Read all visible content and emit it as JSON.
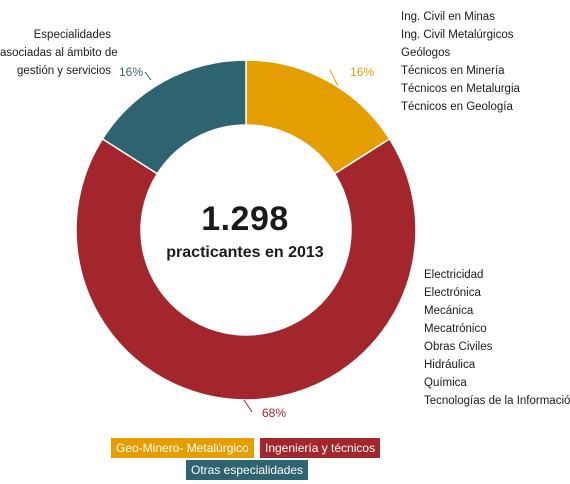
{
  "chart_data": {
    "type": "pie",
    "donut": true,
    "center": {
      "total": "1.298",
      "caption": "practicantes en 2013"
    },
    "slices": [
      {
        "name": "Geo-Minero- Metalúrgico",
        "value": 16,
        "label": "16%",
        "color": "#e59e00"
      },
      {
        "name": "Ingeniería y técnicos",
        "value": 68,
        "label": "68%",
        "color": "#a2262b"
      },
      {
        "name": "Otras especialidades",
        "value": 16,
        "label": "16%",
        "color": "#2e6370"
      }
    ],
    "legend": [
      "Geo-Minero- Metalúrgico",
      "Ingeniería y técnicos",
      "Otras especialidades"
    ],
    "legend_position": "bottom"
  },
  "annotations": {
    "geo": [
      "Ing. Civil en Minas",
      "Ing. Civil Metalúrgicos",
      "Geólogos",
      "Técnicos en Minería",
      "Técnicos en Metalurgia",
      "Técnicos en Geología"
    ],
    "ing": [
      "Electricidad",
      "Electrónica",
      "Mecánica",
      "Mecatrónico",
      "Obras Civiles",
      "Hidráulica",
      "Química",
      "Tecnologías de la Información"
    ],
    "otras": [
      "Especialidades",
      "asociadas al ámbito de",
      "gestión y servicios"
    ]
  }
}
